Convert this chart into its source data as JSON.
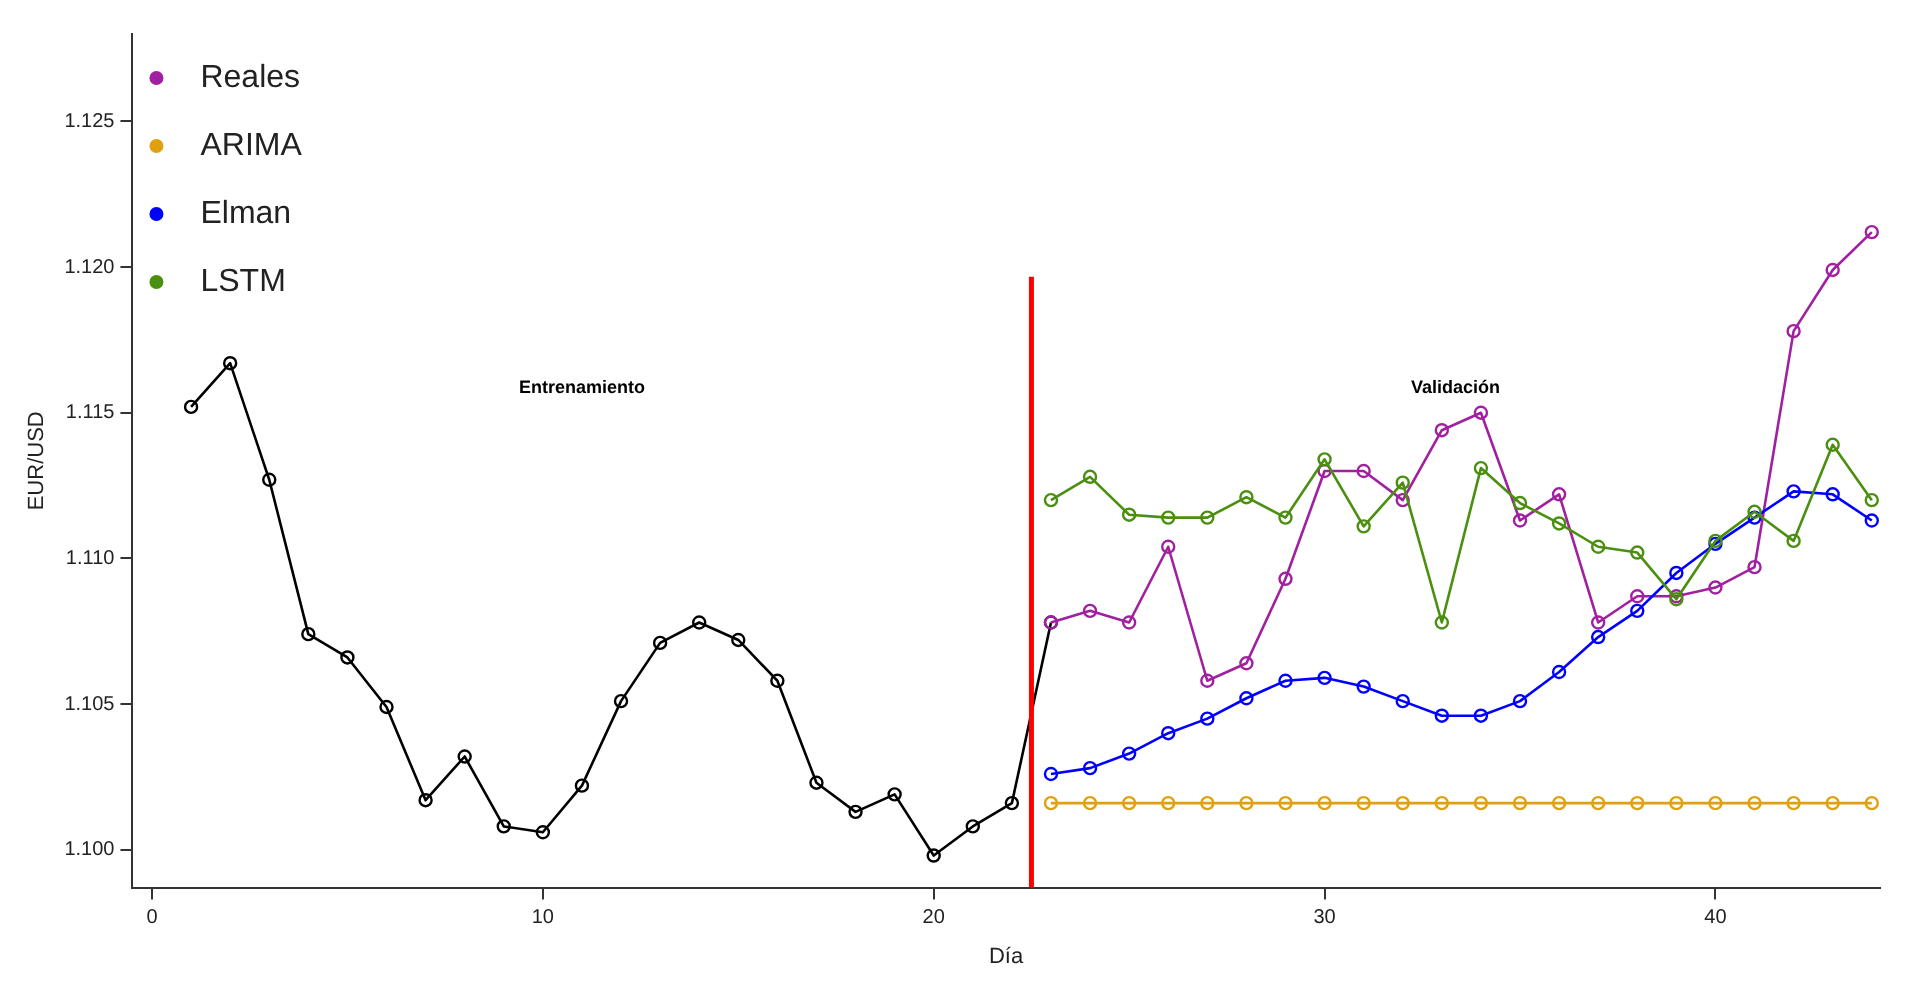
{
  "chart_data": {
    "type": "line",
    "xlabel": "Día",
    "ylabel": "EUR/USD",
    "xlim": [
      -0.5,
      44.2
    ],
    "xticks": [
      0,
      10,
      20,
      30,
      40
    ],
    "ylim": [
      1.0987,
      1.128
    ],
    "yticks": [
      {
        "value": 1.1,
        "label": "1.100"
      },
      {
        "value": 1.105,
        "label": "1.105"
      },
      {
        "value": 1.11,
        "label": "1.110"
      },
      {
        "value": 1.115,
        "label": "1.115"
      },
      {
        "value": 1.12,
        "label": "1.120"
      },
      {
        "value": 1.125,
        "label": "1.125"
      }
    ],
    "grid": false,
    "legend": "top left",
    "marker": "circle",
    "line_style": "solid",
    "ref_lines": [
      {
        "axis": "x",
        "value": 22.5,
        "color": "#ff0000"
      }
    ],
    "annotations": [
      "Entrenamiento",
      "Validación"
    ],
    "series": [
      {
        "color": "#000000",
        "x": [
          1,
          2,
          3,
          4,
          5,
          6,
          7,
          8,
          9,
          10,
          11,
          12,
          13,
          14,
          15,
          16,
          17,
          18,
          19,
          20,
          21,
          22,
          23
        ],
        "values": [
          1.1152,
          1.1167,
          1.1127,
          1.1074,
          1.1066,
          1.1049,
          1.1017,
          1.1032,
          1.1008,
          1.1006,
          1.1022,
          1.1051,
          1.1071,
          1.1078,
          1.1072,
          1.1058,
          1.1023,
          1.1013,
          1.1019,
          1.0998,
          1.1008,
          1.1016,
          1.1078
        ]
      },
      {
        "name": "Reales",
        "color": "#a020a0",
        "x": [
          23,
          24,
          25,
          26,
          27,
          28,
          29,
          30,
          31,
          32,
          33,
          34,
          35,
          36,
          37,
          38,
          39,
          40,
          41,
          42,
          43,
          44
        ],
        "values": [
          1.1078,
          1.1082,
          1.1078,
          1.1104,
          1.1058,
          1.1064,
          1.1093,
          1.113,
          1.113,
          1.112,
          1.1144,
          1.115,
          1.1113,
          1.1122,
          1.1078,
          1.1087,
          1.1087,
          1.109,
          1.1097,
          1.1178,
          1.1199,
          1.1212
        ]
      },
      {
        "name": "ARIMA",
        "color": "#e0a010",
        "x": [
          23,
          24,
          25,
          26,
          27,
          28,
          29,
          30,
          31,
          32,
          33,
          34,
          35,
          36,
          37,
          38,
          39,
          40,
          41,
          42,
          43,
          44
        ],
        "values": [
          1.1016,
          1.1016,
          1.1016,
          1.1016,
          1.1016,
          1.1016,
          1.1016,
          1.1016,
          1.1016,
          1.1016,
          1.1016,
          1.1016,
          1.1016,
          1.1016,
          1.1016,
          1.1016,
          1.1016,
          1.1016,
          1.1016,
          1.1016,
          1.1016,
          1.1016
        ]
      },
      {
        "name": "Elman",
        "color": "#0000ff",
        "x": [
          23,
          24,
          25,
          26,
          27,
          28,
          29,
          30,
          31,
          32,
          33,
          34,
          35,
          36,
          37,
          38,
          39,
          40,
          41,
          42,
          43,
          44
        ],
        "values": [
          1.1026,
          1.1028,
          1.1033,
          1.104,
          1.1045,
          1.1052,
          1.1058,
          1.1059,
          1.1056,
          1.1051,
          1.1046,
          1.1046,
          1.1051,
          1.1061,
          1.1073,
          1.1082,
          1.1095,
          1.1105,
          1.1114,
          1.1123,
          1.1122,
          1.1113
        ]
      },
      {
        "name": "LSTM",
        "color": "#4a8f10",
        "x": [
          23,
          24,
          25,
          26,
          27,
          28,
          29,
          30,
          31,
          32,
          33,
          34,
          35,
          36,
          37,
          38,
          39,
          40,
          41,
          42,
          43,
          44
        ],
        "values": [
          1.112,
          1.1128,
          1.1115,
          1.1114,
          1.1114,
          1.1121,
          1.1114,
          1.1134,
          1.1111,
          1.1126,
          1.1078,
          1.1131,
          1.1119,
          1.1112,
          1.1104,
          1.1102,
          1.1086,
          1.1106,
          1.1116,
          1.1106,
          1.1139,
          1.112
        ]
      }
    ]
  }
}
